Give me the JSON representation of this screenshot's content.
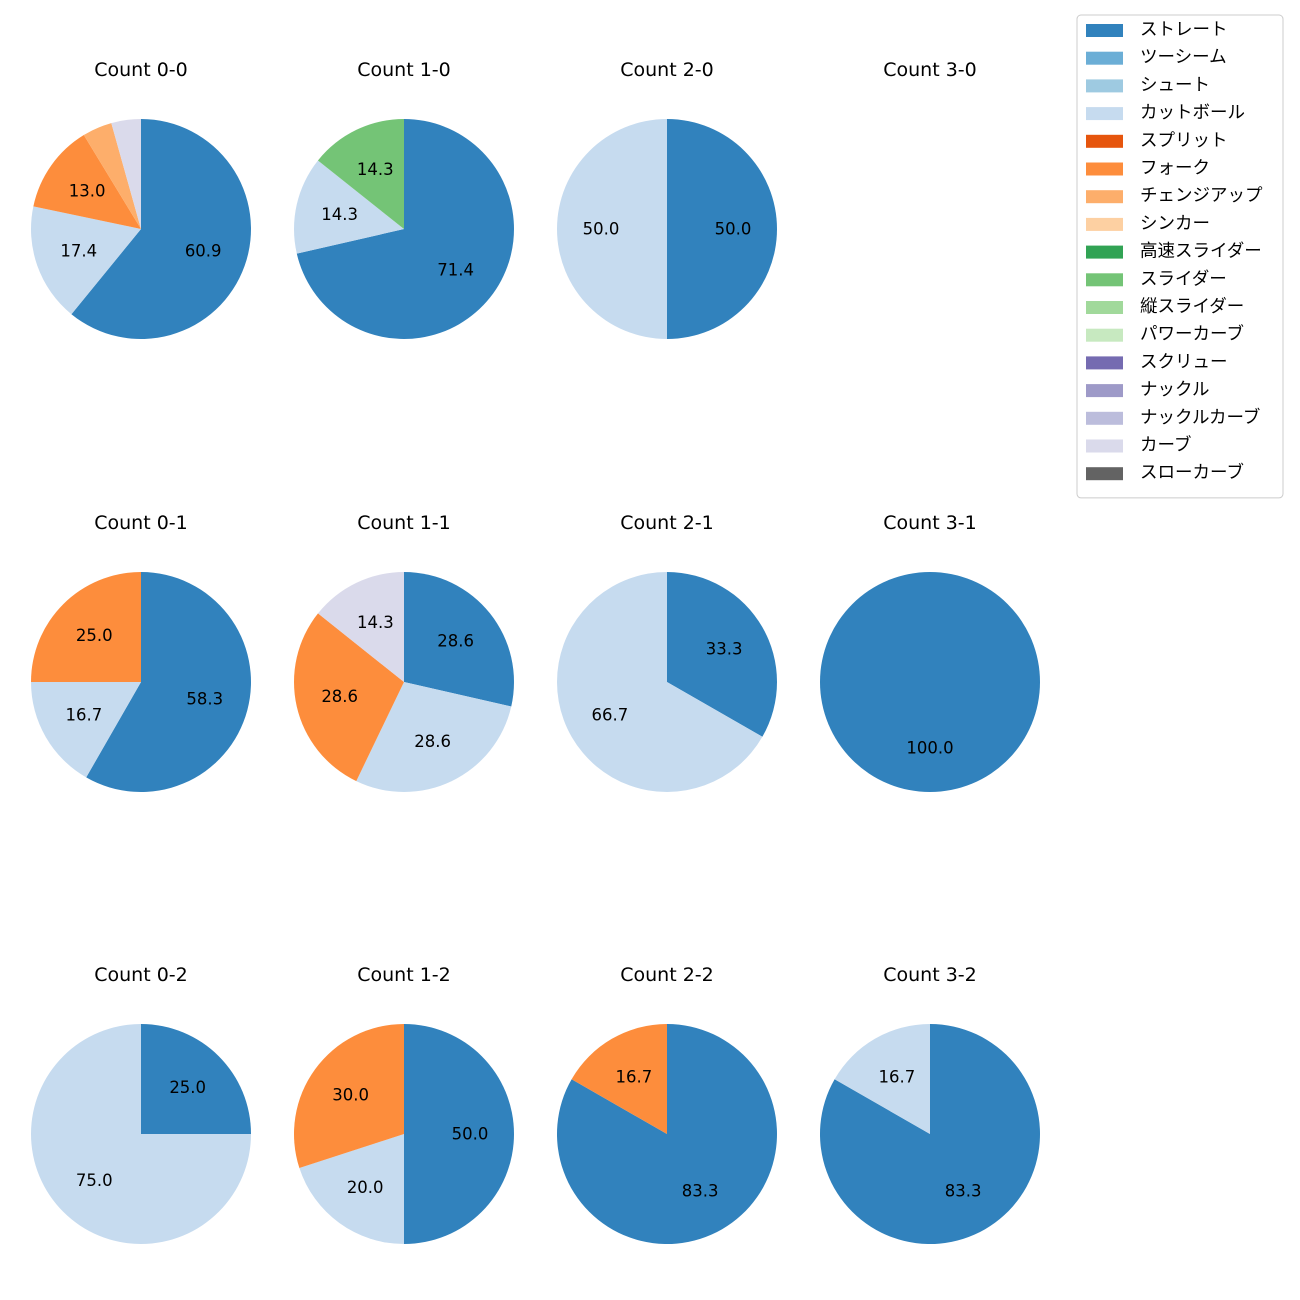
{
  "chart_data": {
    "type": "pie",
    "legend": {
      "placement": "top-right",
      "entries": [
        {
          "name": "ストレート",
          "color": "#3182bd"
        },
        {
          "name": "ツーシーム",
          "color": "#6baed6"
        },
        {
          "name": "シュート",
          "color": "#9ecae1"
        },
        {
          "name": "カットボール",
          "color": "#c6dbef"
        },
        {
          "name": "スプリット",
          "color": "#e6550d"
        },
        {
          "name": "フォーク",
          "color": "#fd8d3c"
        },
        {
          "name": "チェンジアップ",
          "color": "#fdae6b"
        },
        {
          "name": "シンカー",
          "color": "#fdd0a2"
        },
        {
          "name": "高速スライダー",
          "color": "#31a354"
        },
        {
          "name": "スライダー",
          "color": "#74c476"
        },
        {
          "name": "縦スライダー",
          "color": "#a1d99b"
        },
        {
          "name": "パワーカーブ",
          "color": "#c7e9c0"
        },
        {
          "name": "スクリュー",
          "color": "#756bb1"
        },
        {
          "name": "ナックル",
          "color": "#9e9ac8"
        },
        {
          "name": "ナックルカーブ",
          "color": "#bcbddc"
        },
        {
          "name": "カーブ",
          "color": "#dadaeb"
        },
        {
          "name": "スローカーブ",
          "color": "#636363"
        }
      ]
    },
    "panels": [
      {
        "title": "Count 0-0",
        "slices": [
          {
            "pitch": "ストレート",
            "value": 60.9,
            "label": "60.9"
          },
          {
            "pitch": "カットボール",
            "value": 17.4,
            "label": "17.4"
          },
          {
            "pitch": "フォーク",
            "value": 13.0,
            "label": "13.0"
          },
          {
            "pitch": "チェンジアップ",
            "value": 4.35,
            "label": ""
          },
          {
            "pitch": "カーブ",
            "value": 4.35,
            "label": ""
          }
        ]
      },
      {
        "title": "Count 1-0",
        "slices": [
          {
            "pitch": "ストレート",
            "value": 71.4,
            "label": "71.4"
          },
          {
            "pitch": "カットボール",
            "value": 14.3,
            "label": "14.3"
          },
          {
            "pitch": "スライダー",
            "value": 14.3,
            "label": "14.3"
          }
        ]
      },
      {
        "title": "Count 2-0",
        "slices": [
          {
            "pitch": "ストレート",
            "value": 50.0,
            "label": "50.0"
          },
          {
            "pitch": "カットボール",
            "value": 50.0,
            "label": "50.0"
          }
        ]
      },
      {
        "title": "Count 3-0",
        "slices": []
      },
      {
        "title": "Count 0-1",
        "slices": [
          {
            "pitch": "ストレート",
            "value": 58.3,
            "label": "58.3"
          },
          {
            "pitch": "カットボール",
            "value": 16.7,
            "label": "16.7"
          },
          {
            "pitch": "フォーク",
            "value": 25.0,
            "label": "25.0"
          }
        ]
      },
      {
        "title": "Count 1-1",
        "slices": [
          {
            "pitch": "ストレート",
            "value": 28.6,
            "label": "28.6"
          },
          {
            "pitch": "カットボール",
            "value": 28.6,
            "label": "28.6"
          },
          {
            "pitch": "フォーク",
            "value": 28.6,
            "label": "28.6"
          },
          {
            "pitch": "カーブ",
            "value": 14.3,
            "label": "14.3"
          }
        ]
      },
      {
        "title": "Count 2-1",
        "slices": [
          {
            "pitch": "ストレート",
            "value": 33.3,
            "label": "33.3"
          },
          {
            "pitch": "カットボール",
            "value": 66.7,
            "label": "66.7"
          }
        ]
      },
      {
        "title": "Count 3-1",
        "slices": [
          {
            "pitch": "ストレート",
            "value": 100.0,
            "label": "100.0"
          }
        ]
      },
      {
        "title": "Count 0-2",
        "slices": [
          {
            "pitch": "ストレート",
            "value": 25.0,
            "label": "25.0"
          },
          {
            "pitch": "カットボール",
            "value": 75.0,
            "label": "75.0"
          }
        ]
      },
      {
        "title": "Count 1-2",
        "slices": [
          {
            "pitch": "ストレート",
            "value": 50.0,
            "label": "50.0"
          },
          {
            "pitch": "カットボール",
            "value": 20.0,
            "label": "20.0"
          },
          {
            "pitch": "フォーク",
            "value": 30.0,
            "label": "30.0"
          }
        ]
      },
      {
        "title": "Count 2-2",
        "slices": [
          {
            "pitch": "ストレート",
            "value": 83.3,
            "label": "83.3"
          },
          {
            "pitch": "フォーク",
            "value": 16.7,
            "label": "16.7"
          }
        ]
      },
      {
        "title": "Count 3-2",
        "slices": [
          {
            "pitch": "ストレート",
            "value": 83.3,
            "label": "83.3"
          },
          {
            "pitch": "カットボール",
            "value": 16.7,
            "label": "16.7"
          }
        ]
      }
    ]
  }
}
